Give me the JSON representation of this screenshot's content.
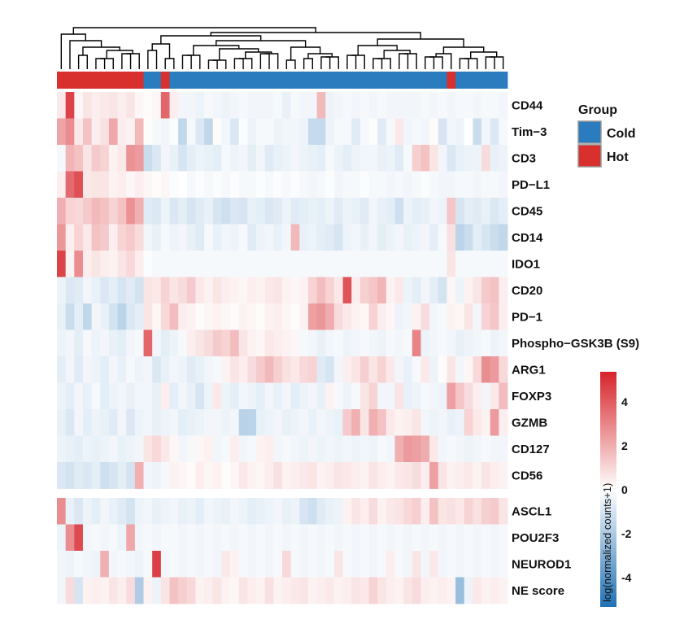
{
  "chart_data": {
    "type": "heatmap",
    "colorscale": {
      "low": "#2171b5",
      "mid": "#ffffff",
      "high": "#d6242a",
      "min": -5,
      "max": 5
    },
    "colorbar": {
      "title": "log(normalized counts+1)",
      "ticks": [
        4,
        2,
        0,
        -2,
        -4
      ]
    },
    "legend": {
      "title": "Group",
      "placement": "right",
      "items": [
        {
          "label": "Cold",
          "color": "#2b7bbf"
        },
        {
          "label": "Hot",
          "color": "#d7302d"
        }
      ]
    },
    "groups": [
      "Hot",
      "Hot",
      "Hot",
      "Hot",
      "Hot",
      "Hot",
      "Hot",
      "Hot",
      "Hot",
      "Hot",
      "Cold",
      "Cold",
      "Hot",
      "Cold",
      "Cold",
      "Cold",
      "Cold",
      "Cold",
      "Cold",
      "Cold",
      "Cold",
      "Cold",
      "Cold",
      "Cold",
      "Cold",
      "Cold",
      "Cold",
      "Cold",
      "Cold",
      "Cold",
      "Cold",
      "Cold",
      "Cold",
      "Cold",
      "Cold",
      "Cold",
      "Cold",
      "Cold",
      "Cold",
      "Cold",
      "Cold",
      "Cold",
      "Cold",
      "Cold",
      "Cold",
      "Hot",
      "Cold",
      "Cold",
      "Cold",
      "Cold",
      "Cold",
      "Cold"
    ],
    "row_blocks": [
      {
        "rows": [
          "CD44",
          "Tim−3",
          "CD3",
          "PD−L1",
          "CD45",
          "CD14",
          "IDO1",
          "CD20",
          "PD−1",
          "Phospho−GSK3B (S9)",
          "ARG1",
          "FOXP3",
          "GZMB",
          "CD127",
          "CD56"
        ],
        "values": [
          [
            0.5,
            4.3,
            0.2,
            0.6,
            0.4,
            0.5,
            0.6,
            0.4,
            0.6,
            0.2,
            0.1,
            0.2,
            3.5,
            0.4,
            -0.3,
            -0.3,
            -0.4,
            -0.2,
            -0.3,
            -0.4,
            -0.3,
            -0.2,
            -0.3,
            -0.3,
            -0.3,
            -0.2,
            -0.5,
            -0.2,
            -0.3,
            -0.3,
            1.6,
            -0.4,
            -0.3,
            -0.2,
            -0.3,
            -0.2,
            -0.3,
            -0.2,
            -0.3,
            -0.3,
            -0.3,
            -0.3,
            -0.2,
            -0.3,
            -0.2,
            -0.3,
            -0.2,
            -0.2,
            -0.3,
            -0.2,
            -0.2,
            -0.3
          ],
          [
            2.1,
            2.6,
            0.5,
            1.4,
            0.4,
            0.7,
            2.0,
            0.4,
            0.3,
            1.6,
            0.1,
            -0.2,
            -0.3,
            -0.1,
            -1.4,
            -0.2,
            -0.8,
            -1.4,
            0.1,
            -0.3,
            -0.8,
            -0.1,
            -0.4,
            -0.2,
            -0.2,
            -0.4,
            -0.3,
            -0.3,
            -0.4,
            -1.3,
            -1.3,
            -0.4,
            -0.2,
            -0.2,
            -0.7,
            -0.2,
            -0.1,
            -0.7,
            -0.2,
            0.5,
            -0.3,
            -0.2,
            -0.3,
            0.1,
            -0.9,
            -0.3,
            -0.4,
            0.0,
            -1.2,
            -0.3,
            -0.8,
            -0.2
          ],
          [
            -0.2,
            1.7,
            1.4,
            0.6,
            1.2,
            1.0,
            0.3,
            0.5,
            2.5,
            2.3,
            -1.2,
            -0.8,
            -0.3,
            -0.5,
            -0.9,
            -0.6,
            -0.4,
            -0.5,
            -0.6,
            -0.2,
            -0.4,
            -0.3,
            -0.6,
            -0.3,
            -0.7,
            -0.5,
            -0.4,
            -0.3,
            -0.4,
            -0.5,
            -0.6,
            -0.2,
            -0.4,
            -0.6,
            -0.4,
            -0.3,
            -0.3,
            -0.5,
            -0.4,
            -0.7,
            -0.2,
            1.1,
            1.4,
            0.6,
            -0.3,
            -0.8,
            -0.5,
            -0.4,
            -0.4,
            0.8,
            -0.5,
            -0.4
          ],
          [
            0.4,
            3.4,
            4.0,
            0.5,
            0.6,
            0.6,
            0.3,
            0.4,
            0.2,
            0.4,
            0.2,
            0.1,
            0.2,
            -0.1,
            0.0,
            -0.2,
            -0.1,
            -0.2,
            -0.1,
            -0.2,
            -0.1,
            -0.2,
            -0.2,
            -0.1,
            -0.2,
            -0.1,
            -0.2,
            -0.1,
            -0.2,
            -0.3,
            -0.2,
            -0.1,
            -0.3,
            -0.2,
            -0.2,
            -0.1,
            -0.2,
            -0.2,
            -0.3,
            -0.2,
            -0.3,
            -0.2,
            -0.1,
            -0.2,
            -0.3,
            -0.3,
            -0.2,
            -0.2,
            -0.3,
            -0.2,
            -0.2,
            -0.3
          ],
          [
            1.8,
            1.0,
            0.9,
            1.2,
            1.6,
            1.4,
            1.0,
            1.4,
            2.5,
            1.8,
            -0.7,
            -0.8,
            -0.4,
            -0.8,
            -0.6,
            -0.9,
            -0.7,
            -0.5,
            -0.9,
            -1.1,
            -0.8,
            -0.9,
            -0.5,
            -0.6,
            -0.8,
            -0.7,
            -0.4,
            -0.7,
            -0.6,
            -0.5,
            -0.6,
            -0.4,
            -0.7,
            -0.4,
            -0.5,
            -0.7,
            -0.3,
            -0.5,
            -0.6,
            -1.1,
            -0.4,
            -0.6,
            -0.5,
            -0.3,
            -0.4,
            1.3,
            -0.9,
            -0.6,
            -0.7,
            -0.5,
            -0.8,
            -0.6
          ],
          [
            2.4,
            0.4,
            1.0,
            0.5,
            1.4,
            1.2,
            0.4,
            1.0,
            1.2,
            0.8,
            -0.3,
            -0.5,
            -0.2,
            -0.4,
            -0.3,
            -0.5,
            -0.7,
            -0.2,
            -0.5,
            -0.3,
            -0.4,
            -0.2,
            -0.7,
            -0.4,
            -0.3,
            -0.5,
            -0.3,
            1.6,
            -0.5,
            -0.4,
            -0.6,
            -0.7,
            -0.9,
            -0.4,
            -0.3,
            -0.5,
            -0.3,
            -0.6,
            -0.4,
            -0.3,
            -0.5,
            -0.4,
            -0.3,
            -0.6,
            -0.2,
            0.7,
            -1.5,
            -1.2,
            -0.6,
            -0.9,
            -1.2,
            -1.4
          ],
          [
            4.3,
            0.3,
            2.6,
            0.4,
            0.6,
            0.4,
            0.3,
            0.6,
            0.9,
            0.4,
            -0.1,
            -0.2,
            -0.2,
            -0.2,
            -0.2,
            -0.2,
            -0.2,
            -0.2,
            -0.2,
            -0.2,
            -0.2,
            -0.2,
            -0.2,
            -0.2,
            -0.2,
            -0.2,
            -0.2,
            -0.2,
            -0.2,
            -0.2,
            -0.2,
            -0.2,
            -0.2,
            -0.2,
            -0.2,
            -0.2,
            -0.2,
            -0.2,
            -0.2,
            -0.2,
            -0.2,
            -0.2,
            -0.2,
            -0.2,
            -0.2,
            0.6,
            -0.2,
            -0.2,
            -0.2,
            -0.2,
            -0.2,
            -0.2
          ],
          [
            -0.4,
            -0.8,
            -0.7,
            -0.3,
            -0.5,
            -0.8,
            -0.6,
            -0.9,
            -0.7,
            -1.0,
            0.6,
            0.5,
            1.0,
            0.6,
            0.8,
            1.2,
            0.5,
            0.3,
            0.6,
            0.4,
            0.3,
            0.2,
            0.4,
            0.3,
            0.5,
            0.6,
            0.3,
            0.2,
            0.3,
            1.0,
            1.5,
            1.0,
            0.5,
            3.9,
            0.4,
            1.1,
            1.3,
            1.7,
            0.3,
            0.5,
            -0.4,
            -0.6,
            -0.3,
            -0.6,
            -1.0,
            0.2,
            -0.4,
            0.3,
            0.6,
            1.2,
            1.4,
            0.4
          ],
          [
            -0.5,
            -1.2,
            -0.6,
            -1.4,
            -0.3,
            -0.5,
            -1.0,
            -1.5,
            -0.8,
            -0.6,
            0.6,
            0.2,
            0.9,
            1.5,
            0.4,
            0.3,
            0.1,
            0.2,
            0.3,
            0.2,
            0.1,
            0.3,
            0.2,
            0.1,
            0.3,
            0.4,
            0.2,
            0.1,
            0.3,
            2.2,
            2.4,
            1.9,
            0.8,
            0.5,
            0.3,
            0.2,
            1.0,
            0.4,
            0.2,
            -0.4,
            -0.3,
            0.3,
            0.8,
            -0.3,
            -0.2,
            0.3,
            0.2,
            0.6,
            -0.3,
            1.0,
            1.3,
            0.4
          ],
          [
            -0.4,
            -0.3,
            -0.6,
            -0.2,
            -0.4,
            -0.3,
            -0.5,
            -0.6,
            -0.3,
            -0.2,
            3.5,
            -0.3,
            -0.6,
            -0.4,
            -0.2,
            0.4,
            0.6,
            0.8,
            1.2,
            1.0,
            1.5,
            0.6,
            0.3,
            0.2,
            0.5,
            0.4,
            0.3,
            0.2,
            -0.2,
            -0.3,
            -0.5,
            -0.3,
            -0.2,
            -0.4,
            -0.3,
            -0.2,
            -0.3,
            -0.4,
            -0.2,
            -0.3,
            -0.2,
            2.8,
            -0.4,
            -0.3,
            -0.2,
            -0.3,
            -0.5,
            -0.4,
            -0.3,
            -0.2,
            -0.4,
            -0.3
          ],
          [
            -0.6,
            -0.3,
            -0.7,
            -0.3,
            -0.4,
            -0.6,
            -0.3,
            -0.5,
            -0.2,
            -0.4,
            -0.3,
            -0.8,
            -0.5,
            -0.3,
            -0.4,
            -0.7,
            -0.5,
            -0.3,
            -0.2,
            0.3,
            0.6,
            0.4,
            0.8,
            1.2,
            1.6,
            1.1,
            0.7,
            0.5,
            0.9,
            1.0,
            -0.7,
            -0.9,
            -0.3,
            0.4,
            0.6,
            1.1,
            0.6,
            1.0,
            0.5,
            -0.3,
            -0.5,
            -0.2,
            0.5,
            -0.4,
            0.1,
            0.6,
            -0.3,
            0.2,
            0.9,
            2.6,
            2.3,
            0.9
          ],
          [
            -0.4,
            -0.6,
            -0.3,
            -0.5,
            -0.2,
            -0.6,
            -0.4,
            -0.3,
            -0.5,
            -0.3,
            -0.3,
            -0.5,
            0.4,
            -0.6,
            -0.3,
            -0.5,
            -0.9,
            -0.4,
            0.5,
            -0.4,
            -0.6,
            -0.3,
            -0.4,
            -0.6,
            -0.3,
            -0.5,
            -0.3,
            -0.6,
            -0.4,
            -0.3,
            -0.5,
            0.3,
            -0.2,
            -0.4,
            -0.2,
            0.6,
            1.0,
            -0.3,
            -0.3,
            0.6,
            -0.5,
            -0.4,
            -0.2,
            -0.3,
            -0.4,
            2.2,
            1.3,
            0.8,
            0.4,
            -0.3,
            0.5,
            1.5
          ],
          [
            -0.5,
            -0.8,
            -0.3,
            -0.6,
            -0.4,
            -0.5,
            -0.7,
            -0.3,
            -0.8,
            -0.4,
            -0.3,
            -0.5,
            -0.4,
            -0.3,
            -0.6,
            -0.5,
            -0.4,
            -0.3,
            -0.3,
            -0.4,
            -0.3,
            -1.6,
            -1.5,
            -0.5,
            -0.4,
            -0.3,
            -0.5,
            -0.4,
            -0.3,
            -0.5,
            -0.3,
            -0.4,
            -0.5,
            1.2,
            1.8,
            0.6,
            1.8,
            1.4,
            0.5,
            0.3,
            0.4,
            0.6,
            -0.3,
            -0.4,
            -0.3,
            -0.5,
            -0.4,
            1.0,
            0.5,
            0.3,
            2.3,
            0.4
          ],
          [
            -0.4,
            -0.5,
            -0.6,
            -0.4,
            -0.5,
            -0.4,
            -0.3,
            -0.5,
            -0.4,
            -0.3,
            0.6,
            0.9,
            0.5,
            0.2,
            -0.3,
            -0.2,
            0.2,
            0.3,
            -0.3,
            -0.2,
            0.4,
            -0.3,
            -0.2,
            0.3,
            0.4,
            -0.3,
            -0.2,
            -0.3,
            -0.4,
            -0.3,
            -0.4,
            -0.3,
            -0.4,
            -0.3,
            -0.4,
            -0.3,
            -0.4,
            -0.2,
            -0.3,
            1.8,
            2.3,
            2.2,
            1.9,
            0.5,
            -0.3,
            -0.2,
            -0.3,
            -0.4,
            -0.3,
            -0.2,
            -0.3,
            -0.3
          ],
          [
            -0.8,
            -1.0,
            -0.7,
            -0.8,
            -0.6,
            -1.1,
            -0.9,
            -0.6,
            -1.0,
            1.8,
            -0.3,
            -0.4,
            -0.2,
            0.3,
            0.2,
            0.1,
            0.4,
            0.2,
            0.3,
            0.1,
            0.2,
            0.5,
            0.3,
            0.2,
            0.4,
            0.7,
            0.3,
            0.4,
            0.5,
            0.6,
            0.3,
            0.4,
            0.6,
            0.5,
            0.4,
            0.3,
            0.6,
            0.4,
            0.3,
            0.5,
            0.6,
            0.8,
            0.4,
            2.2,
            0.6,
            0.3,
            0.4,
            0.5,
            0.3,
            0.6,
            0.4,
            0.3
          ]
        ]
      },
      {
        "rows": [
          "ASCL1",
          "POU2F3",
          "NEUROD1",
          "NE score"
        ],
        "values": [
          [
            2.6,
            -0.5,
            -0.8,
            -0.4,
            -0.6,
            -0.3,
            -0.5,
            -0.7,
            -1.0,
            -0.4,
            -0.3,
            -0.5,
            -0.4,
            -0.3,
            -0.5,
            -0.4,
            -0.6,
            -0.3,
            -0.4,
            -0.5,
            -0.3,
            -0.4,
            -0.6,
            -0.5,
            -0.4,
            -0.3,
            -0.5,
            -0.4,
            -0.9,
            -1.1,
            -0.7,
            -0.5,
            -0.4,
            0.3,
            0.6,
            0.4,
            0.8,
            0.3,
            0.5,
            0.6,
            0.9,
            1.1,
            0.4,
            1.4,
            0.6,
            0.7,
            0.5,
            1.0,
            0.7,
            1.1,
            1.2,
            0.6
          ],
          [
            -0.4,
            2.6,
            4.1,
            -0.3,
            -0.2,
            -0.3,
            -0.2,
            -0.4,
            2.0,
            -0.3,
            -0.2,
            -0.3,
            -0.2,
            -0.2,
            -0.3,
            -0.2,
            -0.3,
            -0.2,
            -0.3,
            -0.2,
            -0.3,
            -0.2,
            -0.3,
            -0.2,
            -0.3,
            -0.2,
            -0.3,
            -0.2,
            -0.3,
            -0.2,
            -0.3,
            -0.2,
            -0.3,
            -0.2,
            -0.3,
            -0.2,
            -0.3,
            -0.2,
            -0.3,
            -0.2,
            -0.3,
            -0.2,
            -0.3,
            -0.2,
            -0.3,
            -0.2,
            -0.3,
            -0.2,
            -0.3,
            -0.2,
            -0.3,
            -0.2
          ],
          [
            -0.3,
            -0.4,
            -0.2,
            -0.3,
            -0.4,
            1.8,
            -0.3,
            -0.2,
            -0.3,
            -0.4,
            -0.2,
            4.4,
            -0.3,
            -0.2,
            -0.3,
            -0.2,
            -0.3,
            -0.2,
            -0.3,
            0.5,
            0.3,
            -0.2,
            -0.3,
            -0.2,
            -0.3,
            -0.2,
            0.9,
            -0.2,
            -0.3,
            -0.2,
            -0.3,
            -0.2,
            0.6,
            -0.2,
            -0.3,
            -0.2,
            -0.3,
            -0.2,
            0.4,
            -0.2,
            -0.3,
            0.6,
            -0.3,
            0.5,
            -0.3,
            -0.2,
            -0.3,
            -0.2,
            -0.3,
            -0.2,
            -0.3,
            -0.2
          ],
          [
            -0.3,
            0.8,
            -0.9,
            0.3,
            0.4,
            0.3,
            0.6,
            0.4,
            0.8,
            -1.8,
            0.3,
            -0.4,
            0.6,
            1.4,
            1.1,
            0.9,
            0.3,
            0.4,
            0.6,
            0.3,
            0.2,
            0.6,
            0.4,
            0.3,
            0.7,
            0.3,
            0.4,
            0.5,
            0.6,
            0.3,
            0.4,
            0.5,
            0.3,
            0.4,
            0.6,
            0.5,
            1.0,
            0.6,
            0.4,
            0.3,
            0.6,
            0.8,
            0.4,
            0.3,
            0.4,
            0.3,
            -2.3,
            -0.4,
            0.5,
            0.3,
            0.4,
            0.3
          ]
        ]
      }
    ]
  }
}
